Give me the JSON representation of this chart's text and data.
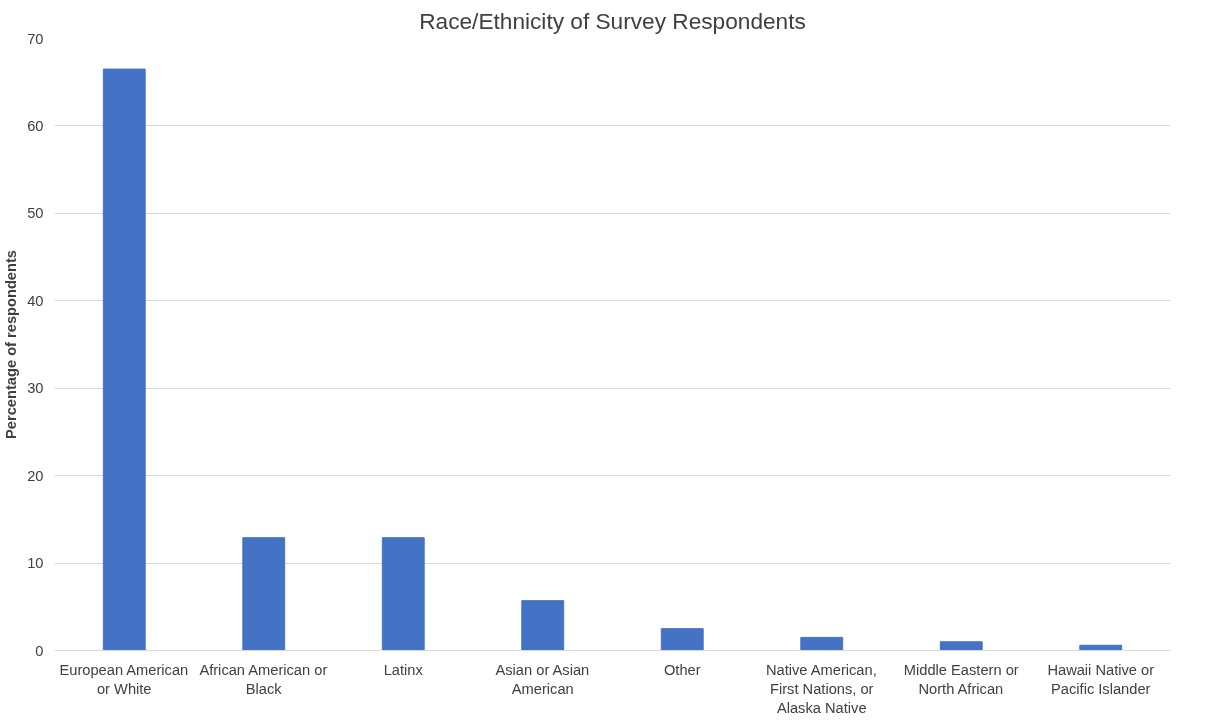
{
  "chart_data": {
    "type": "bar",
    "title": "Race/Ethnicity of Survey Respondents",
    "ylabel": "Percentage of respondents",
    "categories": [
      "European American or White",
      "African American or Black",
      "Latinx",
      "Asian or Asian American",
      "Other",
      "Native American, First Nations, or Alaska Native",
      "Middle Eastern or North African",
      "Hawaii Native or Pacific Islander"
    ],
    "values": [
      66.5,
      12.9,
      12.9,
      5.7,
      2.5,
      1.5,
      1.0,
      0.6
    ],
    "color": "#4472c4",
    "ylim": [
      0,
      70
    ],
    "yticks": [
      0,
      10,
      20,
      30,
      40,
      50,
      60,
      70
    ],
    "grid": "y"
  }
}
